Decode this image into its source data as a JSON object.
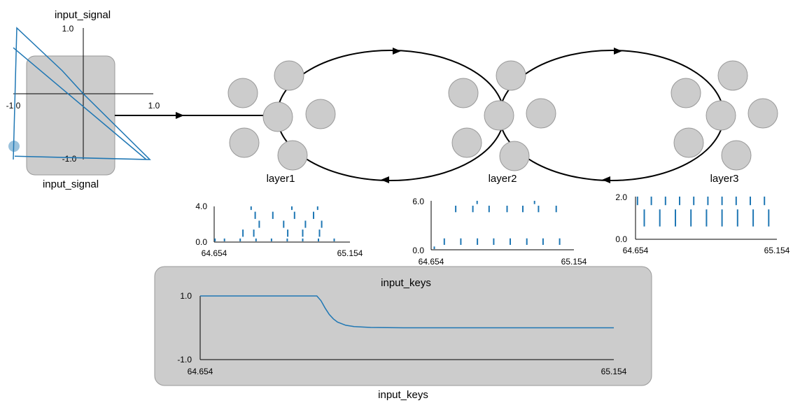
{
  "input_signal": {
    "title": "input_signal",
    "node_label": "input_signal",
    "x_tick_min": "-1.0",
    "x_tick_max": "1.0",
    "y_tick_min": "-1.0",
    "y_tick_max": "1.0"
  },
  "ensembles": [
    {
      "label": "layer1"
    },
    {
      "label": "layer2"
    },
    {
      "label": "layer3"
    }
  ],
  "rasters": [
    {
      "ymax": "4.0",
      "ymin": "0.0",
      "xmin": "64.654",
      "xmax": "65.154"
    },
    {
      "ymax": "6.0",
      "ymin": "0.0",
      "xmin": "64.654",
      "xmax": "65.154"
    },
    {
      "ymax": "2.0",
      "ymin": "0.0",
      "xmin": "64.654",
      "xmax": "65.154"
    }
  ],
  "input_keys": {
    "title": "input_keys",
    "node_label": "input_keys",
    "ymax": "1.0",
    "ymin": "-1.0",
    "xmin": "64.654",
    "xmax": "65.154"
  },
  "colors": {
    "node_fill": "#cccccc",
    "node_stroke": "#999999",
    "plot_line": "#1f77b4",
    "edge": "#000000"
  },
  "chart_data": [
    {
      "type": "line",
      "title": "input_signal",
      "xlim": [
        -1.0,
        1.0
      ],
      "ylim": [
        -1.0,
        1.0
      ],
      "x": [
        -1.0,
        -0.95,
        -0.3,
        0.0,
        0.95,
        -0.98,
        0.9,
        -1.0
      ],
      "y": [
        -1.0,
        1.0,
        0.35,
        0.0,
        -1.0,
        -0.95,
        -1.0,
        0.7
      ]
    },
    {
      "type": "scatter",
      "xlim": [
        64.654,
        65.154
      ],
      "ylim": [
        0,
        4
      ],
      "spikes": [
        {
          "t": 64.657,
          "n": 0
        },
        {
          "t": 64.692,
          "n": 0
        },
        {
          "t": 64.75,
          "n": 0
        },
        {
          "t": 64.808,
          "n": 0
        },
        {
          "t": 64.865,
          "n": 0
        },
        {
          "t": 64.923,
          "n": 0
        },
        {
          "t": 64.98,
          "n": 0
        },
        {
          "t": 65.038,
          "n": 0
        },
        {
          "t": 65.096,
          "n": 0
        },
        {
          "t": 64.76,
          "n": 1
        },
        {
          "t": 64.8,
          "n": 1
        },
        {
          "t": 64.925,
          "n": 1
        },
        {
          "t": 64.98,
          "n": 1
        },
        {
          "t": 65.042,
          "n": 1
        },
        {
          "t": 64.82,
          "n": 2
        },
        {
          "t": 64.91,
          "n": 2
        },
        {
          "t": 64.99,
          "n": 2
        },
        {
          "t": 65.05,
          "n": 2
        },
        {
          "t": 64.805,
          "n": 3
        },
        {
          "t": 64.87,
          "n": 3
        },
        {
          "t": 64.95,
          "n": 3
        },
        {
          "t": 65.02,
          "n": 3
        },
        {
          "t": 64.79,
          "n": 4
        },
        {
          "t": 64.94,
          "n": 4
        },
        {
          "t": 65.035,
          "n": 4
        }
      ]
    },
    {
      "type": "scatter",
      "xlim": [
        64.654,
        65.154
      ],
      "ylim": [
        0,
        6
      ],
      "spikes": [
        {
          "t": 64.665,
          "n": 0
        },
        {
          "t": 64.7,
          "n": 1
        },
        {
          "t": 64.758,
          "n": 1
        },
        {
          "t": 64.816,
          "n": 1
        },
        {
          "t": 64.873,
          "n": 1
        },
        {
          "t": 64.931,
          "n": 1
        },
        {
          "t": 64.989,
          "n": 1
        },
        {
          "t": 65.046,
          "n": 1
        },
        {
          "t": 65.104,
          "n": 1
        },
        {
          "t": 64.74,
          "n": 5
        },
        {
          "t": 64.8,
          "n": 5
        },
        {
          "t": 64.857,
          "n": 5
        },
        {
          "t": 64.92,
          "n": 5
        },
        {
          "t": 64.975,
          "n": 5
        },
        {
          "t": 65.03,
          "n": 5
        },
        {
          "t": 65.092,
          "n": 5
        },
        {
          "t": 64.815,
          "n": 6
        },
        {
          "t": 65.016,
          "n": 6
        }
      ]
    },
    {
      "type": "scatter",
      "xlim": [
        64.654,
        65.154
      ],
      "ylim": [
        0,
        2
      ],
      "spikes": [
        {
          "t": 64.661,
          "n": 2
        },
        {
          "t": 64.71,
          "n": 2
        },
        {
          "t": 64.76,
          "n": 2
        },
        {
          "t": 64.81,
          "n": 2
        },
        {
          "t": 64.86,
          "n": 2
        },
        {
          "t": 64.91,
          "n": 2
        },
        {
          "t": 64.96,
          "n": 2
        },
        {
          "t": 65.01,
          "n": 2
        },
        {
          "t": 65.06,
          "n": 2
        },
        {
          "t": 65.11,
          "n": 2
        },
        {
          "t": 64.685,
          "n": 1
        },
        {
          "t": 64.74,
          "n": 1
        },
        {
          "t": 64.795,
          "n": 1
        },
        {
          "t": 64.85,
          "n": 1
        },
        {
          "t": 64.905,
          "n": 1
        },
        {
          "t": 64.96,
          "n": 1
        },
        {
          "t": 65.015,
          "n": 1
        },
        {
          "t": 65.07,
          "n": 1
        },
        {
          "t": 65.125,
          "n": 1
        }
      ]
    },
    {
      "type": "line",
      "title": "input_keys",
      "xlim": [
        64.654,
        65.154
      ],
      "ylim": [
        -1.0,
        1.0
      ],
      "x": [
        64.654,
        64.795,
        64.8,
        64.805,
        64.81,
        64.815,
        64.82,
        64.83,
        64.84,
        64.86,
        64.9,
        65.154
      ],
      "y": [
        1.0,
        1.0,
        0.85,
        0.62,
        0.42,
        0.28,
        0.18,
        0.08,
        0.04,
        0.01,
        0.0,
        0.0
      ]
    }
  ]
}
